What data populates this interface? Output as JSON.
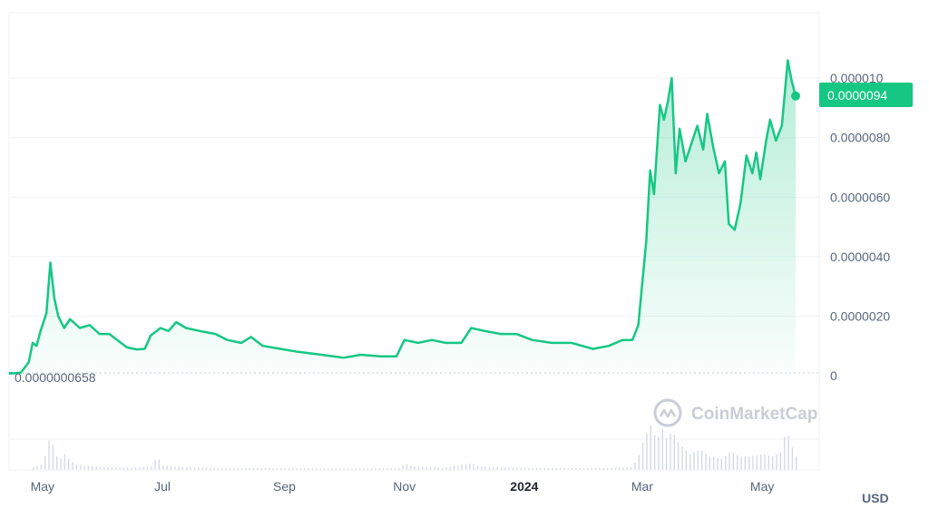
{
  "chart_data": {
    "type": "area",
    "watermark": "CoinMarketCap",
    "currency": "USD",
    "start_label": "0.0000000658",
    "current_price_label": "0.0000094",
    "current_price": 9.4e-06,
    "y_ticks": [
      {
        "value": 0,
        "label": "0"
      },
      {
        "value": 2e-06,
        "label": "0.0000020"
      },
      {
        "value": 4e-06,
        "label": "0.0000040"
      },
      {
        "value": 6e-06,
        "label": "0.0000060"
      },
      {
        "value": 8e-06,
        "label": "0.0000080"
      },
      {
        "value": 1e-05,
        "label": "0.000010"
      }
    ],
    "ylim": [
      0,
      1.22e-05
    ],
    "x_ticks": [
      {
        "date": "2023-05-01",
        "label": "May",
        "bold": false
      },
      {
        "date": "2023-07-01",
        "label": "Jul",
        "bold": false
      },
      {
        "date": "2023-09-01",
        "label": "Sep",
        "bold": false
      },
      {
        "date": "2023-11-01",
        "label": "Nov",
        "bold": false
      },
      {
        "date": "2024-01-01",
        "label": "2024",
        "bold": true
      },
      {
        "date": "2024-03-01",
        "label": "Mar",
        "bold": false
      },
      {
        "date": "2024-05-01",
        "label": "May",
        "bold": false
      }
    ],
    "xlim": [
      "2023-04-14",
      "2024-05-24"
    ],
    "colors": {
      "line": "#16c784",
      "area_top": "#16c784",
      "volume": "#d6dae2",
      "grid": "#eff2f5",
      "axis_text": "#58667e"
    },
    "series": [
      {
        "points": [
          [
            "2023-04-14",
            7e-08
          ],
          [
            "2023-04-20",
            1e-07
          ],
          [
            "2023-04-24",
            4.5e-07
          ],
          [
            "2023-04-26",
            1.1e-06
          ],
          [
            "2023-04-28",
            1e-06
          ],
          [
            "2023-04-30",
            1.5e-06
          ],
          [
            "2023-05-03",
            2.1e-06
          ],
          [
            "2023-05-05",
            3.8e-06
          ],
          [
            "2023-05-07",
            2.6e-06
          ],
          [
            "2023-05-09",
            2e-06
          ],
          [
            "2023-05-12",
            1.6e-06
          ],
          [
            "2023-05-15",
            1.9e-06
          ],
          [
            "2023-05-20",
            1.6e-06
          ],
          [
            "2023-05-25",
            1.7e-06
          ],
          [
            "2023-05-30",
            1.4e-06
          ],
          [
            "2023-06-04",
            1.4e-06
          ],
          [
            "2023-06-08",
            1.2e-06
          ],
          [
            "2023-06-13",
            9.5e-07
          ],
          [
            "2023-06-18",
            8.8e-07
          ],
          [
            "2023-06-22",
            9e-07
          ],
          [
            "2023-06-25",
            1.35e-06
          ],
          [
            "2023-06-30",
            1.6e-06
          ],
          [
            "2023-07-04",
            1.5e-06
          ],
          [
            "2023-07-08",
            1.8e-06
          ],
          [
            "2023-07-13",
            1.6e-06
          ],
          [
            "2023-07-20",
            1.5e-06
          ],
          [
            "2023-07-28",
            1.4e-06
          ],
          [
            "2023-08-03",
            1.2e-06
          ],
          [
            "2023-08-10",
            1.1e-06
          ],
          [
            "2023-08-15",
            1.3e-06
          ],
          [
            "2023-08-21",
            1e-06
          ],
          [
            "2023-08-30",
            9e-07
          ],
          [
            "2023-09-08",
            8e-07
          ],
          [
            "2023-09-20",
            7e-07
          ],
          [
            "2023-10-01",
            6e-07
          ],
          [
            "2023-10-10",
            7e-07
          ],
          [
            "2023-10-20",
            6.5e-07
          ],
          [
            "2023-10-28",
            6.5e-07
          ],
          [
            "2023-11-01",
            1.2e-06
          ],
          [
            "2023-11-08",
            1.1e-06
          ],
          [
            "2023-11-15",
            1.2e-06
          ],
          [
            "2023-11-22",
            1.1e-06
          ],
          [
            "2023-11-30",
            1.1e-06
          ],
          [
            "2023-12-05",
            1.6e-06
          ],
          [
            "2023-12-12",
            1.5e-06
          ],
          [
            "2023-12-20",
            1.4e-06
          ],
          [
            "2023-12-28",
            1.4e-06
          ],
          [
            "2024-01-05",
            1.2e-06
          ],
          [
            "2024-01-15",
            1.1e-06
          ],
          [
            "2024-01-25",
            1.1e-06
          ],
          [
            "2024-02-05",
            9e-07
          ],
          [
            "2024-02-13",
            1e-06
          ],
          [
            "2024-02-20",
            1.2e-06
          ],
          [
            "2024-02-25",
            1.2e-06
          ],
          [
            "2024-02-28",
            1.7e-06
          ],
          [
            "2024-03-01",
            3.1e-06
          ],
          [
            "2024-03-03",
            4.5e-06
          ],
          [
            "2024-03-05",
            6.9e-06
          ],
          [
            "2024-03-07",
            6.1e-06
          ],
          [
            "2024-03-10",
            9.1e-06
          ],
          [
            "2024-03-12",
            8.6e-06
          ],
          [
            "2024-03-14",
            9.2e-06
          ],
          [
            "2024-03-16",
            1e-05
          ],
          [
            "2024-03-18",
            6.8e-06
          ],
          [
            "2024-03-20",
            8.3e-06
          ],
          [
            "2024-03-23",
            7.2e-06
          ],
          [
            "2024-03-26",
            7.8e-06
          ],
          [
            "2024-03-29",
            8.4e-06
          ],
          [
            "2024-04-01",
            7.6e-06
          ],
          [
            "2024-04-03",
            8.8e-06
          ],
          [
            "2024-04-06",
            7.7e-06
          ],
          [
            "2024-04-09",
            6.8e-06
          ],
          [
            "2024-04-12",
            7.2e-06
          ],
          [
            "2024-04-14",
            5.1e-06
          ],
          [
            "2024-04-17",
            4.9e-06
          ],
          [
            "2024-04-20",
            5.8e-06
          ],
          [
            "2024-04-23",
            7.4e-06
          ],
          [
            "2024-04-26",
            6.8e-06
          ],
          [
            "2024-04-28",
            7.5e-06
          ],
          [
            "2024-04-30",
            6.6e-06
          ],
          [
            "2024-05-03",
            7.9e-06
          ],
          [
            "2024-05-05",
            8.6e-06
          ],
          [
            "2024-05-08",
            7.9e-06
          ],
          [
            "2024-05-11",
            8.4e-06
          ],
          [
            "2024-05-14",
            1.06e-05
          ],
          [
            "2024-05-16",
            9.9e-06
          ],
          [
            "2024-05-18",
            9.4e-06
          ]
        ]
      }
    ],
    "volume_series": [
      {
        "points": [
          [
            "2023-04-24",
            0.02
          ],
          [
            "2023-04-30",
            0.12
          ],
          [
            "2023-05-03",
            0.4
          ],
          [
            "2023-05-05",
            0.9
          ],
          [
            "2023-05-06",
            0.55
          ],
          [
            "2023-05-08",
            0.3
          ],
          [
            "2023-05-10",
            0.25
          ],
          [
            "2023-05-12",
            0.35
          ],
          [
            "2023-05-15",
            0.2
          ],
          [
            "2023-05-18",
            0.12
          ],
          [
            "2023-05-22",
            0.1
          ],
          [
            "2023-05-28",
            0.08
          ],
          [
            "2023-06-05",
            0.06
          ],
          [
            "2023-06-15",
            0.05
          ],
          [
            "2023-06-25",
            0.08
          ],
          [
            "2023-06-28",
            0.3
          ],
          [
            "2023-07-01",
            0.1
          ],
          [
            "2023-07-08",
            0.07
          ],
          [
            "2023-07-20",
            0.05
          ],
          [
            "2023-08-05",
            0.05
          ],
          [
            "2023-08-20",
            0.04
          ],
          [
            "2023-09-05",
            0.04
          ],
          [
            "2023-09-25",
            0.03
          ],
          [
            "2023-10-15",
            0.03
          ],
          [
            "2023-10-30",
            0.05
          ],
          [
            "2023-11-01",
            0.15
          ],
          [
            "2023-11-05",
            0.08
          ],
          [
            "2023-11-20",
            0.05
          ],
          [
            "2023-12-05",
            0.15
          ],
          [
            "2023-12-10",
            0.07
          ],
          [
            "2023-12-25",
            0.05
          ],
          [
            "2024-01-10",
            0.04
          ],
          [
            "2024-01-25",
            0.04
          ],
          [
            "2024-02-10",
            0.04
          ],
          [
            "2024-02-24",
            0.06
          ],
          [
            "2024-02-27",
            0.2
          ],
          [
            "2024-03-01",
            0.6
          ],
          [
            "2024-03-03",
            0.8
          ],
          [
            "2024-03-05",
            1.0
          ],
          [
            "2024-03-08",
            0.65
          ],
          [
            "2024-03-11",
            0.9
          ],
          [
            "2024-03-13",
            0.7
          ],
          [
            "2024-03-16",
            0.85
          ],
          [
            "2024-03-20",
            0.55
          ],
          [
            "2024-03-25",
            0.35
          ],
          [
            "2024-03-30",
            0.45
          ],
          [
            "2024-04-04",
            0.3
          ],
          [
            "2024-04-10",
            0.25
          ],
          [
            "2024-04-15",
            0.4
          ],
          [
            "2024-04-19",
            0.3
          ],
          [
            "2024-04-25",
            0.3
          ],
          [
            "2024-05-01",
            0.35
          ],
          [
            "2024-05-06",
            0.3
          ],
          [
            "2024-05-10",
            0.4
          ],
          [
            "2024-05-13",
            0.9
          ],
          [
            "2024-05-15",
            0.6
          ],
          [
            "2024-05-18",
            0.3
          ]
        ]
      }
    ]
  }
}
